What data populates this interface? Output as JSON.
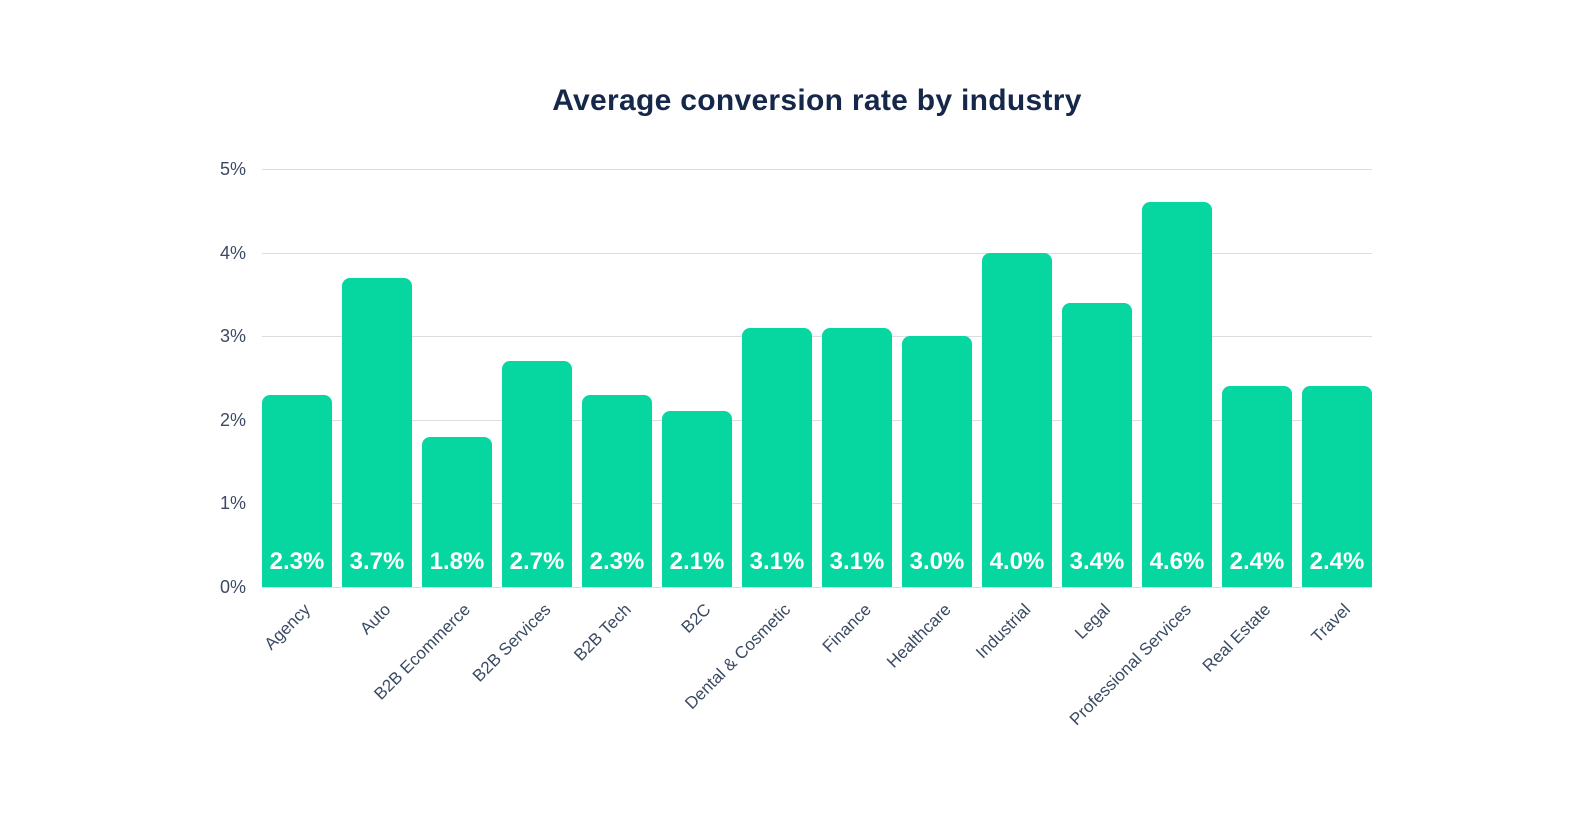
{
  "chart_data": {
    "type": "bar",
    "title": "Average conversion rate by industry",
    "categories": [
      "Agency",
      "Auto",
      "B2B Ecommerce",
      "B2B Services",
      "B2B Tech",
      "B2C",
      "Dental & Cosmetic",
      "Finance",
      "Healthcare",
      "Industrial",
      "Legal",
      "Professional Services",
      "Real Estate",
      "Travel"
    ],
    "values": [
      2.3,
      3.7,
      1.8,
      2.7,
      2.3,
      2.1,
      3.1,
      3.1,
      3.0,
      4.0,
      3.4,
      4.6,
      2.4,
      2.4
    ],
    "value_labels": [
      "2.3%",
      "3.7%",
      "1.8%",
      "2.7%",
      "2.3%",
      "2.1%",
      "3.1%",
      "3.1%",
      "3.0%",
      "4.0%",
      "3.4%",
      "4.6%",
      "2.4%",
      "2.4%"
    ],
    "xlabel": "",
    "ylabel": "",
    "y_ticks": [
      "0%",
      "1%",
      "2%",
      "3%",
      "4%",
      "5%"
    ],
    "ylim": [
      0,
      5
    ],
    "grid": true,
    "legend": false,
    "x_label_rotation_deg": 45,
    "colors": {
      "bar": "#06d6a0",
      "value_label": "#ffffff",
      "title": "#16284a",
      "axis_label": "#3b4a63",
      "gridline": "#dadde2",
      "background": "#ffffff"
    }
  }
}
